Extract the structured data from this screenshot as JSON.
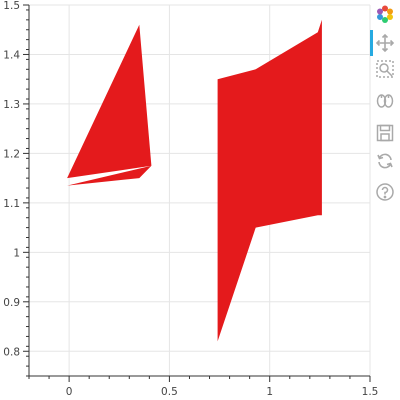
{
  "chart_data": {
    "type": "area",
    "title": "",
    "xlabel": "",
    "ylabel": "",
    "xlim": [
      -0.2,
      1.5
    ],
    "ylim": [
      0.75,
      1.5
    ],
    "x_ticks": [
      0,
      0.5,
      1,
      1.5
    ],
    "x_tick_labels": [
      "0",
      "0.5",
      "1",
      "1.5"
    ],
    "y_ticks": [
      0.8,
      0.9,
      1,
      1.1,
      1.2,
      1.3,
      1.4,
      1.5
    ],
    "y_tick_labels": [
      "0.8",
      "0.9",
      "1",
      "1.1",
      "1.2",
      "1.3",
      "1.4",
      "1.5"
    ],
    "grid": true,
    "fill_color": "#e41a1c",
    "series": [
      {
        "x": [
          -0.01,
          0.35,
          0.41,
          -0.01
        ],
        "y_upper": [
          1.15,
          1.46,
          1.175,
          1.15
        ],
        "y_lower": [
          1.135,
          1.15,
          1.175,
          1.135
        ]
      },
      {
        "x": [
          0.74,
          0.74,
          0.93,
          1.24,
          1.26
        ],
        "y_upper": [
          1.35,
          1.35,
          1.37,
          1.445,
          1.47
        ],
        "y_lower": [
          1.035,
          0.82,
          1.05,
          1.075,
          1.075
        ]
      }
    ]
  },
  "toolbar": {
    "items": [
      {
        "name": "bokeh-logo",
        "icon": "bokeh-logo-icon"
      },
      {
        "name": "pan-tool",
        "icon": "pan-icon",
        "active": true
      },
      {
        "name": "box-zoom-tool",
        "icon": "box-zoom-icon"
      },
      {
        "name": "wheel-zoom-tool",
        "icon": "wheel-zoom-icon"
      },
      {
        "name": "save-tool",
        "icon": "save-icon"
      },
      {
        "name": "reset-tool",
        "icon": "reset-icon"
      },
      {
        "name": "help-tool",
        "icon": "help-icon"
      }
    ],
    "accent_color": "#26aae1",
    "icon_color": "#a9a9a9"
  }
}
